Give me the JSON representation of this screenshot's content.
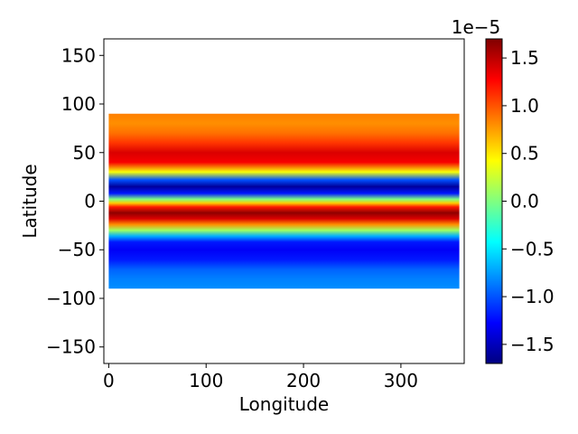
{
  "chart_data": {
    "type": "heatmap",
    "title": "",
    "xlabel": "Longitude",
    "ylabel": "Latitude",
    "xlim": [
      -5,
      365
    ],
    "ylim": [
      -167,
      167
    ],
    "xticks": [
      0,
      100,
      200,
      300
    ],
    "xtick_labels": [
      "0",
      "100",
      "200",
      "300"
    ],
    "yticks": [
      150,
      100,
      50,
      0,
      -50,
      -100,
      -150
    ],
    "ytick_labels": [
      "150",
      "100",
      "50",
      "0",
      "−50",
      "−100",
      "−150"
    ],
    "data_extent": {
      "lon": [
        0,
        360
      ],
      "lat": [
        -90,
        90
      ]
    },
    "colormap": "jet",
    "colorbar": {
      "range": [
        -1.7,
        1.7
      ],
      "ticks": [
        1.5,
        1.0,
        0.5,
        0.0,
        -0.5,
        -1.0,
        -1.5
      ],
      "tick_labels": [
        "1.5",
        "1.0",
        "0.5",
        "0.0",
        "−0.5",
        "−1.0",
        "−1.5"
      ],
      "scale_label": "1e−5"
    },
    "zonal_profile": {
      "description_units": "value ×1e-5 versus latitude (field constant along longitude)",
      "lat": [
        90,
        80,
        70,
        60,
        50,
        40,
        30,
        22,
        15,
        8,
        2,
        -2,
        -6,
        -12,
        -18,
        -24,
        -30,
        -36,
        -42,
        -50,
        -60,
        -70,
        -80,
        -90
      ],
      "value": [
        0.85,
        0.8,
        0.9,
        1.1,
        1.4,
        1.3,
        0.4,
        -1.0,
        -1.6,
        -1.2,
        0.0,
        0.6,
        1.2,
        1.65,
        1.4,
        0.8,
        0.1,
        -0.7,
        -1.2,
        -1.3,
        -1.2,
        -0.95,
        -0.85,
        -0.8
      ]
    }
  }
}
